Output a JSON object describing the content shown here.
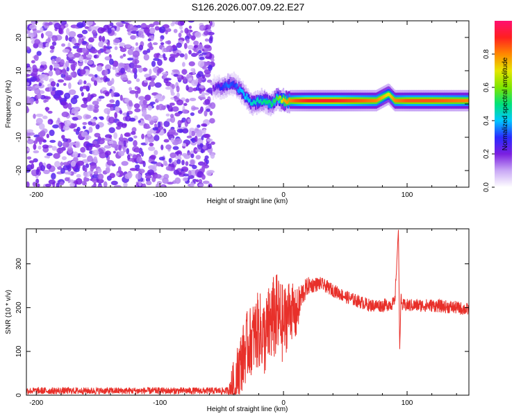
{
  "title": "S126.2026.007.09.22.E27",
  "charts": [
    {
      "type": "heatmap",
      "xlabel": "Height of straight line (km)",
      "ylabel": "Frequency (Hz)",
      "xlim": [
        -208,
        150
      ],
      "ylim": [
        -25,
        25
      ],
      "xticks": [
        -200,
        -100,
        0,
        100
      ],
      "xtick_labels": [
        "-200",
        "-100",
        "0",
        "100"
      ],
      "yticks": [
        -20,
        -10,
        0,
        10,
        20
      ],
      "ytick_labels": [
        "-20",
        "-10",
        "0",
        "10",
        "20"
      ],
      "noise_region_km": [
        -208,
        -57
      ],
      "signal_track": {
        "x_km": [
          -57,
          -50,
          -45,
          -40,
          -35,
          -30,
          -25,
          -20,
          -15,
          -10,
          -5,
          0,
          10,
          20,
          40,
          60,
          75,
          80,
          85,
          90,
          100,
          120,
          150
        ],
        "freq_hz": [
          5,
          5,
          6,
          6,
          4,
          2,
          0,
          1,
          1,
          0,
          2,
          1,
          1,
          1,
          1,
          1,
          1,
          2,
          3,
          1,
          1,
          1,
          1
        ],
        "amplitude": [
          0.2,
          0.3,
          0.35,
          0.3,
          0.4,
          0.4,
          0.45,
          0.45,
          0.5,
          0.5,
          0.55,
          0.75,
          0.85,
          0.9,
          0.9,
          0.85,
          0.8,
          0.75,
          0.7,
          0.8,
          0.85,
          0.85,
          0.8
        ]
      }
    },
    {
      "type": "line",
      "xlabel": "Height of straight line (km)",
      "ylabel": "SNR (10 * v/v)",
      "xlim": [
        -208,
        150
      ],
      "ylim": [
        0,
        380
      ],
      "xticks": [
        -200,
        -100,
        0,
        100
      ],
      "xtick_labels": [
        "-200",
        "-100",
        "0",
        "100"
      ],
      "yticks": [
        0,
        100,
        200,
        300
      ],
      "ytick_labels": [
        "0",
        "100",
        "200",
        "300"
      ],
      "series": [
        {
          "name": "SNR",
          "color": "#e8302a",
          "x": [
            -208,
            -150,
            -100,
            -45,
            -40,
            -35,
            -30,
            -25,
            -20,
            -15,
            -10,
            -5,
            0,
            5,
            10,
            15,
            20,
            30,
            40,
            50,
            60,
            70,
            80,
            90,
            93,
            94,
            95,
            96,
            100,
            120,
            140,
            150
          ],
          "y": [
            10,
            10,
            10,
            10,
            25,
            70,
            110,
            130,
            150,
            130,
            170,
            180,
            160,
            200,
            180,
            230,
            250,
            255,
            240,
            225,
            215,
            205,
            205,
            210,
            380,
            100,
            220,
            205,
            205,
            205,
            200,
            195
          ],
          "noise_amplitude": [
            8,
            8,
            8,
            8,
            60,
            70,
            80,
            80,
            90,
            90,
            100,
            100,
            90,
            70,
            60,
            30,
            20,
            15,
            15,
            15,
            15,
            15,
            15,
            15,
            0,
            0,
            15,
            15,
            15,
            15,
            15,
            15
          ]
        }
      ]
    }
  ],
  "colorbar": {
    "label": "Normalized spectral amplitude",
    "range": [
      0.0,
      1.0
    ],
    "ticks": [
      0.0,
      0.2,
      0.4,
      0.6,
      0.8
    ],
    "tick_labels": [
      "0.0",
      "0.2",
      "0.4",
      "0.6",
      "0.8"
    ],
    "colors": [
      "#ffffff",
      "#c9a8f5",
      "#7b1fe0",
      "#2a2aff",
      "#00c8ff",
      "#00e27a",
      "#7ee600",
      "#e6e600",
      "#ff8800",
      "#ff2020",
      "#ff1070"
    ]
  }
}
